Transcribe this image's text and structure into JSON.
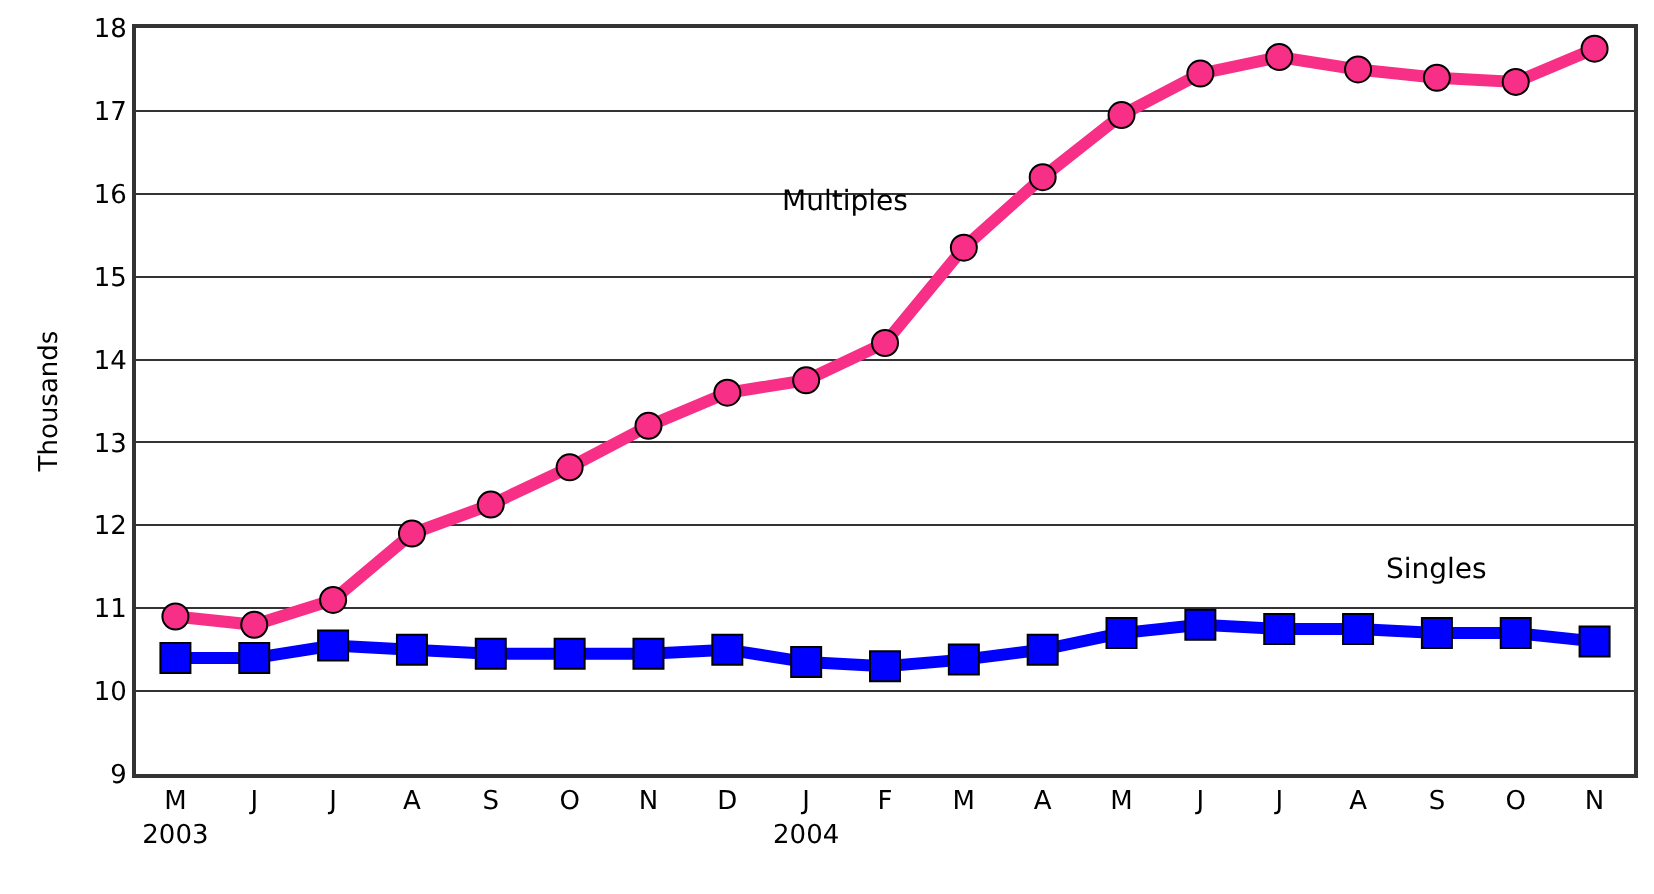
{
  "chart_data": {
    "type": "line",
    "ylabel": "Thousands",
    "categories": [
      "M\n2003",
      "J",
      "J",
      "A",
      "S",
      "O",
      "N",
      "D",
      "J\n2004",
      "F",
      "M",
      "A",
      "M",
      "J",
      "J",
      "A",
      "S",
      "O",
      "N"
    ],
    "series": [
      {
        "name": "Multiples",
        "color": "#f72f86",
        "marker": "circle",
        "values": [
          10.9,
          10.8,
          11.1,
          11.9,
          12.25,
          12.7,
          13.2,
          13.6,
          13.75,
          14.2,
          15.35,
          16.2,
          16.95,
          17.45,
          17.65,
          17.5,
          17.4,
          17.35,
          17.75
        ]
      },
      {
        "name": "Singles",
        "color": "#0000ff",
        "marker": "square",
        "values": [
          10.4,
          10.4,
          10.55,
          10.5,
          10.45,
          10.45,
          10.45,
          10.5,
          10.35,
          10.3,
          10.38,
          10.5,
          10.7,
          10.8,
          10.75,
          10.75,
          10.7,
          10.7,
          10.6
        ]
      }
    ],
    "ylim": [
      9,
      18
    ],
    "yticks": [
      9,
      10,
      11,
      12,
      13,
      14,
      15,
      16,
      17,
      18
    ],
    "grid": "y",
    "legend": false,
    "line_style": "solid"
  }
}
